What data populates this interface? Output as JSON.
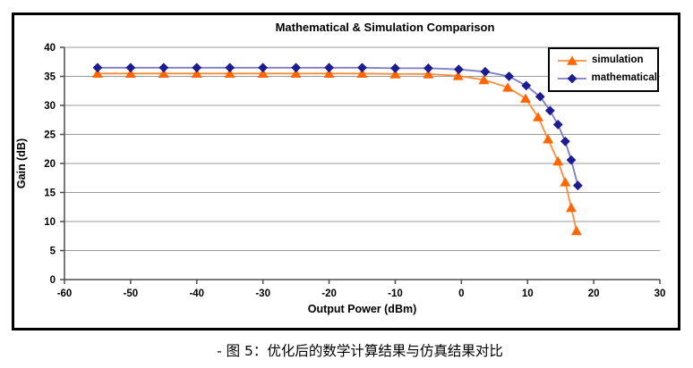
{
  "figure": {
    "caption": "- 图 5：优化后的数学计算结果与仿真结果对比"
  },
  "colors": {
    "grid": "#9a9a9a",
    "axis": "#4d4d4d",
    "frame": "#000000",
    "background": "#ffffff",
    "simulation_marker": "#ff6600",
    "simulation_line": "#ff8c3a",
    "mathematical_marker": "#1c1c90",
    "mathematical_line": "#7b7bc8"
  },
  "chart_data": {
    "type": "line",
    "title": "Mathematical & Simulation Comparison",
    "xlabel": "Output Power (dBm)",
    "ylabel": "Gain (dB)",
    "xlim": [
      -60,
      30
    ],
    "ylim": [
      0,
      40
    ],
    "x_ticks": [
      -60,
      -50,
      -40,
      -30,
      -20,
      -10,
      0,
      10,
      20,
      30
    ],
    "y_ticks": [
      0,
      5,
      10,
      15,
      20,
      25,
      30,
      35,
      40
    ],
    "grid": "horizontal",
    "legend_position": "top-right",
    "series": [
      {
        "name": "simulation",
        "marker": "triangle",
        "marker_color": "#ff6600",
        "line_color": "#ff8c3a",
        "x": [
          -55,
          -50,
          -45,
          -40,
          -35,
          -30,
          -25,
          -20,
          -15,
          -10,
          -5,
          -0.5,
          3.4,
          7.0,
          9.7,
          11.6,
          13.1,
          14.6,
          15.7,
          16.6,
          17.4
        ],
        "y": [
          35.5,
          35.5,
          35.5,
          35.5,
          35.5,
          35.5,
          35.5,
          35.5,
          35.5,
          35.4,
          35.4,
          35.1,
          34.4,
          33.1,
          31.2,
          28.0,
          24.2,
          20.4,
          16.8,
          12.4,
          8.4
        ]
      },
      {
        "name": "mathematical",
        "marker": "diamond",
        "marker_color": "#1c1c90",
        "line_color": "#7b7bc8",
        "x": [
          -55,
          -50,
          -45,
          -40,
          -35,
          -30,
          -25,
          -20,
          -15,
          -10,
          -5,
          -0.4,
          3.6,
          7.2,
          9.8,
          11.9,
          13.4,
          14.6,
          15.7,
          16.6,
          17.6
        ],
        "y": [
          36.5,
          36.5,
          36.5,
          36.5,
          36.5,
          36.5,
          36.5,
          36.5,
          36.5,
          36.4,
          36.4,
          36.2,
          35.8,
          35.0,
          33.4,
          31.5,
          29.1,
          26.7,
          23.8,
          20.6,
          16.2
        ]
      }
    ]
  }
}
